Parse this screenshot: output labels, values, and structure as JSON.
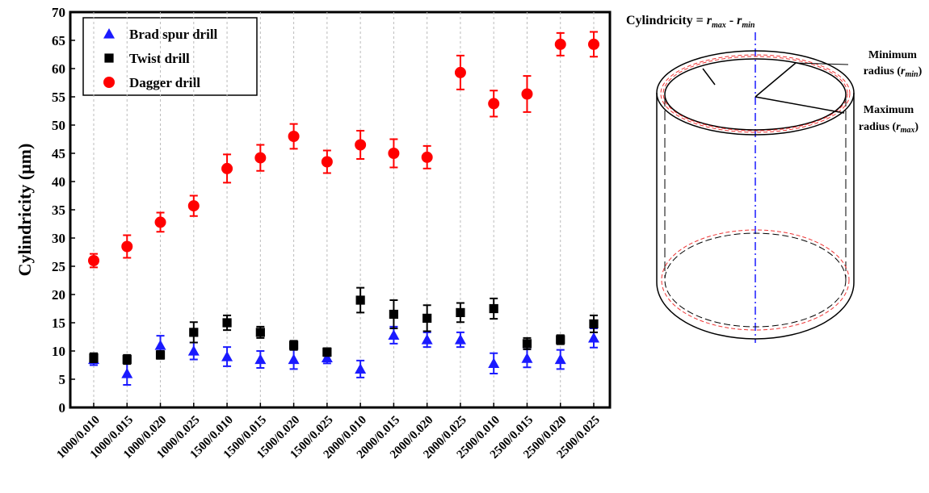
{
  "chart_data": {
    "type": "scatter",
    "ylabel": "Cylindricity (μm)",
    "categories": [
      "1000/0.010",
      "1000/0.015",
      "1000/0.020",
      "1000/0.025",
      "1500/0.010",
      "1500/0.015",
      "1500/0.020",
      "1500/0.025",
      "2000/0.010",
      "2000/0.015",
      "2000/0.020",
      "2000/0.025",
      "2500/0.010",
      "2500/0.015",
      "2500/0.020",
      "2500/0.025"
    ],
    "series": [
      {
        "name": "Brad spur drill",
        "color": "#1a1aff",
        "marker": "triangle",
        "values": [
          8.5,
          6.0,
          11.0,
          10.0,
          9.0,
          8.5,
          8.5,
          8.8,
          6.8,
          12.8,
          12.0,
          12.0,
          7.8,
          8.7,
          8.5,
          12.3
        ],
        "errors": [
          1.0,
          2.0,
          1.7,
          1.5,
          1.7,
          1.5,
          1.7,
          1.0,
          1.5,
          1.5,
          1.3,
          1.3,
          1.8,
          1.6,
          1.7,
          1.7
        ]
      },
      {
        "name": "Twist drill",
        "color": "#000000",
        "marker": "square",
        "values": [
          8.8,
          8.5,
          9.3,
          13.3,
          15.0,
          13.3,
          11.0,
          9.8,
          19.0,
          16.5,
          15.8,
          16.8,
          17.5,
          11.3,
          12.0,
          14.8
        ],
        "errors": [
          0.8,
          0.8,
          0.7,
          1.8,
          1.3,
          1.0,
          0.8,
          0.7,
          2.2,
          2.5,
          2.3,
          1.7,
          1.8,
          1.0,
          0.8,
          1.5
        ]
      },
      {
        "name": "Dagger drill",
        "color": "#ff0000",
        "marker": "circle",
        "values": [
          26.0,
          28.5,
          32.8,
          35.7,
          42.3,
          44.2,
          48.0,
          43.5,
          46.5,
          45.0,
          44.3,
          59.3,
          53.8,
          55.5,
          64.3,
          64.3
        ],
        "errors": [
          1.2,
          2.0,
          1.7,
          1.8,
          2.5,
          2.3,
          2.2,
          2.0,
          2.5,
          2.5,
          2.0,
          3.0,
          2.3,
          3.2,
          2.0,
          2.2
        ]
      }
    ],
    "ylim": [
      0,
      70
    ],
    "yticks": [
      0,
      5,
      10,
      15,
      20,
      25,
      30,
      35,
      40,
      45,
      50,
      55,
      60,
      65,
      70
    ],
    "grid": true,
    "legend": "top-left"
  },
  "diagram": {
    "formula": [
      "Cylindricity = ",
      "r",
      "max",
      " - ",
      "r",
      "min"
    ],
    "minimum": [
      "Minimum",
      "radius (",
      "r",
      "min",
      ")"
    ],
    "maximum": [
      "Maximum",
      "radius (",
      "r",
      "max",
      ")"
    ]
  }
}
